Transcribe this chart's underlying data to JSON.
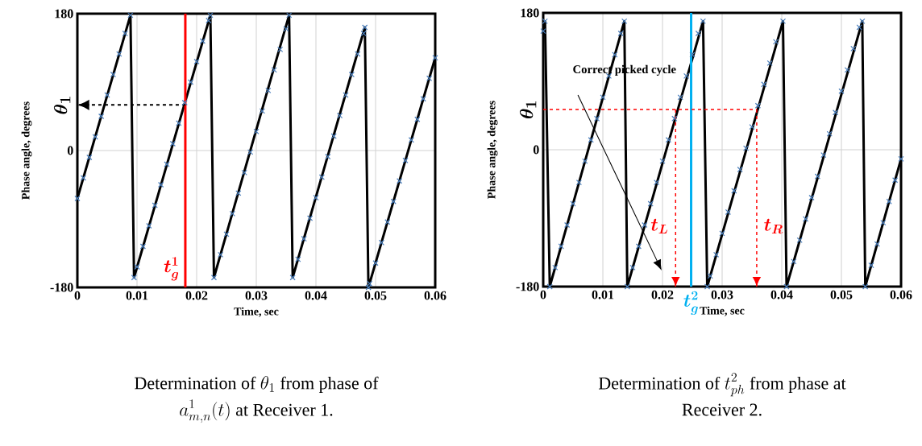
{
  "chart_data": [
    {
      "type": "line",
      "title": "\\begin{gathered}\\text{Determination of }\\theta_1\\text{ from phase of}\\\\a^1_{m,n}(t)\\text{ at Receiver 1.}\\end{gathered}",
      "xlabel": "Time, sec",
      "ylabel": "Phase angle, degrees",
      "xlim": [
        0,
        0.06
      ],
      "ylim": [
        -180,
        180
      ],
      "xticks": [
        0,
        0.01,
        0.02,
        0.03,
        0.04,
        0.05,
        0.06
      ],
      "yticks": [
        -180,
        0,
        180
      ],
      "grid": true,
      "series": [
        {
          "type": "line",
          "marker": "none",
          "color": "#000000",
          "x": [
            0,
            0.0089,
            0.0095,
            0.0223,
            0.0229,
            0.0355,
            0.0361,
            0.0482,
            0.0488,
            0.06
          ],
          "values": [
            -63,
            178,
            -167,
            178,
            -167,
            178,
            -167,
            162,
            -180,
            122
          ]
        },
        {
          "type": "scatter",
          "marker": "cross",
          "color": "#4a7ebb",
          "x": [
            0,
            0.001,
            0.002,
            0.003,
            0.004,
            0.005,
            0.006,
            0.007,
            0.008,
            0.0089,
            0.0095,
            0.01,
            0.011,
            0.012,
            0.013,
            0.014,
            0.015,
            0.016,
            0.017,
            0.018,
            0.019,
            0.02,
            0.021,
            0.022,
            0.0223,
            0.0229,
            0.024,
            0.025,
            0.026,
            0.027,
            0.028,
            0.029,
            0.03,
            0.031,
            0.032,
            0.033,
            0.034,
            0.035,
            0.0355,
            0.0361,
            0.037,
            0.038,
            0.039,
            0.04,
            0.041,
            0.042,
            0.043,
            0.044,
            0.045,
            0.046,
            0.047,
            0.048,
            0.0482,
            0.0488,
            0.049,
            0.05,
            0.051,
            0.052,
            0.053,
            0.054,
            0.055,
            0.056,
            0.057,
            0.058,
            0.059,
            0.06
          ],
          "values": [
            -63,
            -36,
            -9,
            18,
            45,
            73,
            100,
            127,
            154,
            178,
            -167,
            -153,
            -126,
            -99,
            -72,
            -45,
            -18,
            9,
            36,
            63,
            90,
            117,
            144,
            171,
            178,
            -167,
            -137,
            -110,
            -83,
            -56,
            -29,
            -2,
            25,
            52,
            79,
            106,
            133,
            160,
            178,
            -167,
            -143,
            -116,
            -89,
            -62,
            -35,
            -8,
            19,
            46,
            73,
            100,
            127,
            154,
            162,
            -180,
            -175,
            -148,
            -121,
            -94,
            -67,
            -40,
            -13,
            14,
            41,
            68,
            95,
            122
          ]
        }
      ],
      "ref_lines": [
        {
          "axis": "x",
          "value": 0.0181,
          "label": "\\boldsymbol{t_g^1}",
          "color": "#ff0000",
          "line_style": "solid"
        },
        {
          "axis": "y",
          "value": 60,
          "label": "\\boldsymbol{\\theta_1}",
          "color": "#000000",
          "line_style": "dashed"
        }
      ]
    },
    {
      "type": "line",
      "title": "\\begin{gathered}\\text{Determination of }t^2_{ph}\\text{ from phase at}\\\\\\text{Receiver 2.}\\end{gathered}",
      "xlabel": "Time, sec",
      "ylabel": "Phase angle, degrees",
      "xlim": [
        0,
        0.06
      ],
      "ylim": [
        -180,
        180
      ],
      "xticks": [
        0,
        0.01,
        0.02,
        0.03,
        0.04,
        0.05,
        0.06
      ],
      "yticks": [
        -180,
        0,
        180
      ],
      "grid": true,
      "series": [
        {
          "type": "line",
          "marker": "none",
          "color": "#000000",
          "x": [
            0,
            0.0003,
            0.0011,
            0.0136,
            0.0141,
            0.0268,
            0.0275,
            0.0402,
            0.0408,
            0.0535,
            0.054,
            0.06
          ],
          "values": [
            156,
            169,
            -180,
            169,
            -180,
            169,
            -180,
            169,
            -180,
            169,
            -180,
            -12
          ]
        },
        {
          "type": "scatter",
          "marker": "cross",
          "color": "#4a7ebb",
          "x": [
            0,
            0.0003,
            0.0011,
            0.002,
            0.003,
            0.004,
            0.005,
            0.006,
            0.007,
            0.008,
            0.009,
            0.01,
            0.011,
            0.012,
            0.013,
            0.0136,
            0.0141,
            0.015,
            0.016,
            0.017,
            0.018,
            0.019,
            0.02,
            0.021,
            0.022,
            0.023,
            0.024,
            0.025,
            0.026,
            0.0268,
            0.0275,
            0.028,
            0.029,
            0.03,
            0.031,
            0.032,
            0.033,
            0.034,
            0.035,
            0.036,
            0.037,
            0.038,
            0.039,
            0.0402,
            0.0408,
            0.042,
            0.043,
            0.044,
            0.045,
            0.046,
            0.047,
            0.048,
            0.049,
            0.05,
            0.051,
            0.052,
            0.053,
            0.0535,
            0.054,
            0.055,
            0.056,
            0.057,
            0.058,
            0.059,
            0.06
          ],
          "values": [
            156,
            169,
            -180,
            -155,
            -127,
            -99,
            -71,
            -43,
            -15,
            13,
            41,
            69,
            97,
            125,
            153,
            169,
            -180,
            -155,
            -127,
            -99,
            -71,
            -43,
            -15,
            13,
            41,
            69,
            97,
            125,
            153,
            169,
            -180,
            -166,
            -138,
            -110,
            -82,
            -54,
            -26,
            2,
            30,
            58,
            86,
            114,
            142,
            169,
            -180,
            -147,
            -119,
            -91,
            -63,
            -35,
            -7,
            21,
            49,
            77,
            105,
            133,
            161,
            169,
            -180,
            -152,
            -124,
            -96,
            -68,
            -40,
            -12
          ]
        }
      ],
      "ref_lines": [
        {
          "axis": "x",
          "value": 0.0248,
          "label": "\\boldsymbol{t_g^2}",
          "color": "#00b0f0",
          "line_style": "solid"
        },
        {
          "axis": "x",
          "value": 0.0222,
          "label": "\\boldsymbol{t_L}",
          "color": "#ff0000",
          "line_style": "dashed"
        },
        {
          "axis": "x",
          "value": 0.0358,
          "label": "\\boldsymbol{t_R}",
          "color": "#ff0000",
          "line_style": "dashed"
        },
        {
          "axis": "y",
          "value": 53,
          "label": "\\boldsymbol{\\theta_1}",
          "color": "#ff0000",
          "line_style": "dashed"
        }
      ],
      "annotations": [
        "Correct picked cycle"
      ]
    }
  ]
}
